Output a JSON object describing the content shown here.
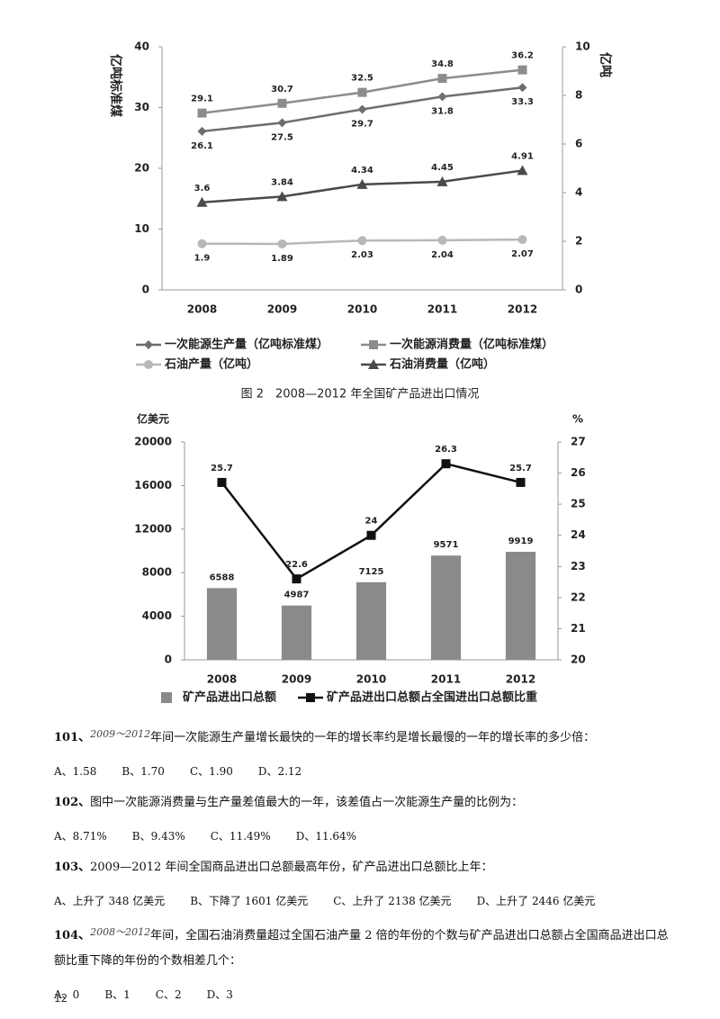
{
  "chart_data": [
    {
      "type": "line",
      "ylabel": "亿吨标准煤",
      "y2label": "亿吨",
      "categories": [
        "2008",
        "2009",
        "2010",
        "2011",
        "2012"
      ],
      "ylim": [
        0,
        40
      ],
      "yticks": [
        0,
        10,
        20,
        30,
        40
      ],
      "y2lim": [
        0,
        10
      ],
      "y2ticks": [
        0,
        2,
        4,
        6,
        8,
        10
      ],
      "series": [
        {
          "name": "一次能源生产量（亿吨标准煤）",
          "color": "#6e6e6e",
          "marker": "diamond",
          "values": [
            26.1,
            27.5,
            29.7,
            31.8,
            33.3
          ]
        },
        {
          "name": "一次能源消费量（亿吨标准煤）",
          "color": "#8c8c8c",
          "marker": "square",
          "values": [
            29.1,
            30.7,
            32.5,
            34.8,
            36.2
          ]
        },
        {
          "name": "石油产量（亿吨）",
          "color": "#b8b8b8",
          "marker": "circle",
          "axis": "y2",
          "values": [
            1.9,
            1.89,
            2.03,
            2.04,
            2.07
          ]
        },
        {
          "name": "石油消费量（亿吨）",
          "color": "#4a4a4a",
          "marker": "triangle",
          "axis": "y2",
          "values": [
            3.6,
            3.84,
            4.34,
            4.45,
            4.91
          ]
        }
      ]
    },
    {
      "type": "bar",
      "title": "图 2　2008—2012 年全国矿产品进出口情况",
      "ylabel": "亿美元",
      "y2label": "%",
      "categories": [
        "2008",
        "2009",
        "2010",
        "2011",
        "2012"
      ],
      "ylim": [
        0,
        20000
      ],
      "yticks": [
        0,
        4000,
        8000,
        12000,
        16000,
        20000
      ],
      "y2lim": [
        20,
        27
      ],
      "y2ticks": [
        20,
        21,
        22,
        23,
        24,
        25,
        26,
        27
      ],
      "series": [
        {
          "name": "矿产品进出口总额",
          "color": "#8a8a8a",
          "values": [
            6588,
            4987,
            7125,
            9571,
            9919
          ]
        },
        {
          "name": "矿产品进出口总额占全国进出口总额比重",
          "type": "line",
          "color": "#111111",
          "marker": "square",
          "axis": "y2",
          "values": [
            25.7,
            22.6,
            24,
            26.3,
            25.7
          ]
        }
      ]
    }
  ],
  "questions": [
    {
      "number": "101、",
      "years": "2009～2012",
      "text": "年间一次能源生产量增长最快的一年的增长率约是增长最慢的一年的增长率的多少倍：",
      "options": [
        "A、1.58",
        "B、1.70",
        "C、1.90",
        "D、2.12"
      ]
    },
    {
      "number": "102、",
      "text": "图中一次能源消费量与生产量差值最大的一年，该差值占一次能源生产量的比例为：",
      "options": [
        "A、8.71%",
        "B、9.43%",
        "C、11.49%",
        "D、11.64%"
      ]
    },
    {
      "number": "103、",
      "text": "2009—2012 年间全国商品进出口总额最高年份，矿产品进出口总额比上年：",
      "options": [
        "A、上升了 348 亿美元",
        "B、下降了 1601 亿美元",
        "C、上升了 2138 亿美元",
        "D、上升了 2446 亿美元"
      ]
    },
    {
      "number": "104、",
      "years": "2008～2012",
      "text": "年间，全国石油消费量超过全国石油产量 2 倍的年份的个数与矿产品进出口总额占全国商品进出口总额比重下降的年份的个数相差几个：",
      "options": [
        "A、0",
        "B、1",
        "C、2",
        "D、3"
      ]
    }
  ],
  "page_number": "12"
}
